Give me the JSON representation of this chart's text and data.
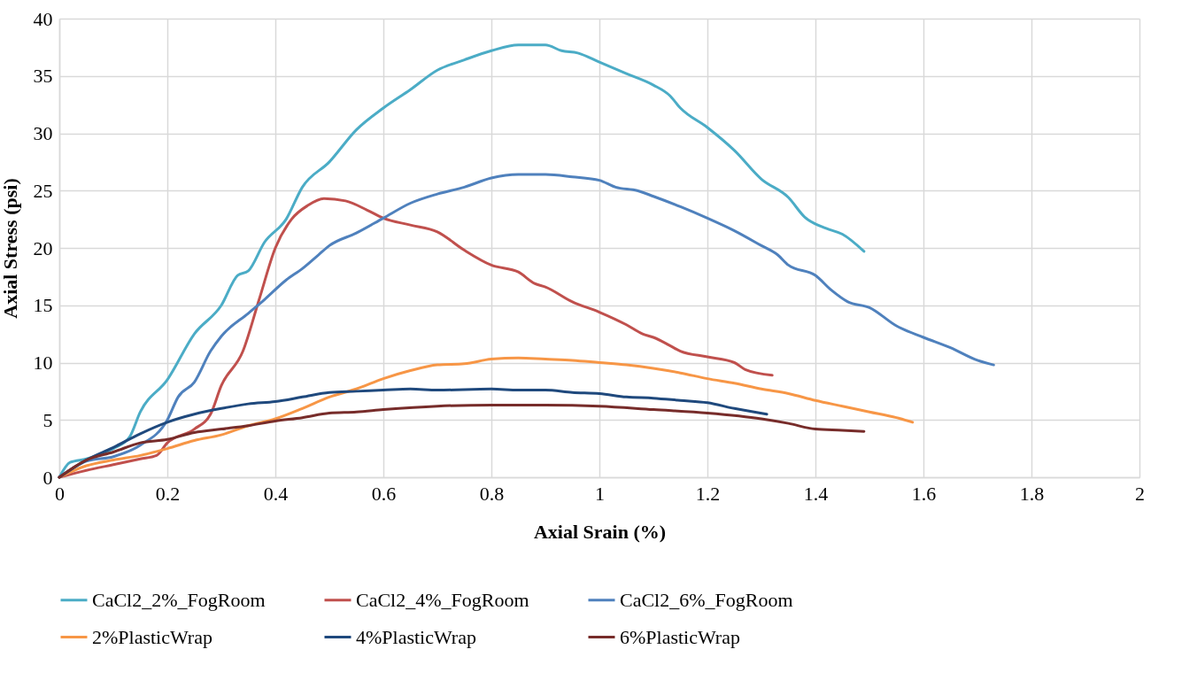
{
  "chart_data": {
    "type": "line",
    "xlabel": "Axial Srain (%)",
    "ylabel": "Axial Stress (psi)",
    "xlim": [
      0,
      2
    ],
    "ylim": [
      0,
      40
    ],
    "xticks": [
      0,
      0.2,
      0.4,
      0.6,
      0.8,
      1,
      1.2,
      1.4,
      1.6,
      1.8,
      2
    ],
    "yticks": [
      0,
      5,
      10,
      15,
      20,
      25,
      30,
      35,
      40
    ],
    "grid": true,
    "legend": "bottom",
    "marker": "none",
    "line_style": "solid",
    "series": [
      {
        "name": "CaCl2_2%_FogRoom",
        "color": "#4bacc6",
        "x": [
          0,
          0.02,
          0.05,
          0.1,
          0.13,
          0.15,
          0.2,
          0.25,
          0.3,
          0.33,
          0.35,
          0.38,
          0.42,
          0.45,
          0.5,
          0.55,
          0.6,
          0.65,
          0.7,
          0.75,
          0.8,
          0.85,
          0.9,
          0.93,
          0.96,
          1,
          1.05,
          1.1,
          1.13,
          1.15,
          1.2,
          1.25,
          1.3,
          1.35,
          1.38,
          1.42,
          1.45,
          1.49
        ],
        "values": [
          0,
          1.3,
          1.6,
          2.5,
          3.5,
          5.7,
          8.5,
          12.5,
          15,
          17.6,
          18,
          20.5,
          22.5,
          25.3,
          27.5,
          30.3,
          32.2,
          33.8,
          35.5,
          36.4,
          37.2,
          37.7,
          37.7,
          37.2,
          37,
          36.2,
          35.2,
          34.2,
          33.3,
          32.2,
          30.5,
          28.5,
          26,
          24.4,
          22.7,
          21.7,
          21.2,
          19.7
        ]
      },
      {
        "name": "CaCl2_4%_FogRoom",
        "color": "#c0504d",
        "x": [
          0,
          0.05,
          0.1,
          0.15,
          0.18,
          0.2,
          0.25,
          0.28,
          0.3,
          0.34,
          0.37,
          0.4,
          0.43,
          0.46,
          0.49,
          0.53,
          0.57,
          0.6,
          0.65,
          0.7,
          0.75,
          0.8,
          0.85,
          0.88,
          0.9,
          0.95,
          1,
          1.05,
          1.08,
          1.1,
          1.13,
          1.15,
          1.2,
          1.25,
          1.27,
          1.32
        ],
        "values": [
          0,
          0.6,
          1.1,
          1.6,
          1.9,
          3,
          4.2,
          5.5,
          8,
          11,
          15.5,
          20,
          22.5,
          23.7,
          24.3,
          24.1,
          23.3,
          22.6,
          22,
          21.4,
          19.8,
          18.5,
          17.9,
          16.9,
          16.6,
          15.3,
          14.4,
          13.3,
          12.5,
          12.2,
          11.5,
          11,
          10.5,
          10,
          9.4,
          8.9
        ]
      },
      {
        "name": "CaCl2_6%_FogRoom",
        "color": "#4f81bd",
        "x": [
          0,
          0.05,
          0.1,
          0.15,
          0.2,
          0.22,
          0.25,
          0.28,
          0.3,
          0.35,
          0.38,
          0.42,
          0.45,
          0.48,
          0.5,
          0.55,
          0.6,
          0.65,
          0.7,
          0.75,
          0.8,
          0.85,
          0.9,
          0.95,
          1,
          1.03,
          1.07,
          1.1,
          1.15,
          1.2,
          1.25,
          1.3,
          1.33,
          1.35,
          1.4,
          1.43,
          1.46,
          1.5,
          1.55,
          1.6,
          1.65,
          1.7,
          1.73
        ],
        "values": [
          0,
          1.4,
          1.8,
          2.8,
          5,
          7,
          8.3,
          11,
          12.3,
          14.3,
          15.5,
          17.2,
          18.2,
          19.4,
          20.2,
          21.3,
          22.6,
          23.9,
          24.7,
          25.3,
          26.1,
          26.4,
          26.4,
          26.2,
          25.9,
          25.3,
          25,
          24.5,
          23.6,
          22.6,
          21.5,
          20.2,
          19.4,
          18.5,
          17.6,
          16.3,
          15.3,
          14.8,
          13.2,
          12.2,
          11.3,
          10.2,
          9.8
        ]
      },
      {
        "name": "2%PlasticWrap",
        "color": "#f79646",
        "x": [
          0,
          0.05,
          0.1,
          0.15,
          0.2,
          0.25,
          0.3,
          0.35,
          0.4,
          0.45,
          0.5,
          0.55,
          0.6,
          0.65,
          0.7,
          0.75,
          0.8,
          0.85,
          0.9,
          0.95,
          1,
          1.05,
          1.1,
          1.15,
          1.2,
          1.25,
          1.3,
          1.35,
          1.4,
          1.45,
          1.5,
          1.55,
          1.58
        ],
        "values": [
          0,
          1,
          1.5,
          1.9,
          2.5,
          3.2,
          3.7,
          4.5,
          5.1,
          6,
          7,
          7.7,
          8.6,
          9.3,
          9.8,
          9.9,
          10.3,
          10.4,
          10.3,
          10.2,
          10,
          9.8,
          9.5,
          9.1,
          8.6,
          8.2,
          7.7,
          7.3,
          6.7,
          6.2,
          5.7,
          5.2,
          4.8
        ]
      },
      {
        "name": "4%PlasticWrap",
        "color": "#1f497d",
        "x": [
          0,
          0.05,
          0.1,
          0.15,
          0.2,
          0.25,
          0.3,
          0.35,
          0.4,
          0.45,
          0.5,
          0.55,
          0.6,
          0.65,
          0.7,
          0.8,
          0.85,
          0.9,
          0.95,
          1,
          1.05,
          1.1,
          1.15,
          1.2,
          1.25,
          1.31
        ],
        "values": [
          0,
          1.5,
          2.6,
          3.8,
          4.8,
          5.5,
          6,
          6.4,
          6.6,
          7,
          7.4,
          7.5,
          7.6,
          7.7,
          7.6,
          7.7,
          7.6,
          7.6,
          7.4,
          7.3,
          7,
          6.9,
          6.7,
          6.5,
          6,
          5.5
        ]
      },
      {
        "name": "6%PlasticWrap",
        "color": "#772c2a",
        "x": [
          0,
          0.05,
          0.1,
          0.15,
          0.2,
          0.25,
          0.3,
          0.35,
          0.4,
          0.45,
          0.5,
          0.55,
          0.6,
          0.7,
          0.8,
          0.9,
          1,
          1.1,
          1.2,
          1.3,
          1.35,
          1.4,
          1.45,
          1.49
        ],
        "values": [
          0,
          1.5,
          2.2,
          3,
          3.3,
          3.9,
          4.2,
          4.5,
          4.9,
          5.2,
          5.6,
          5.7,
          5.9,
          6.2,
          6.3,
          6.3,
          6.2,
          5.9,
          5.6,
          5.1,
          4.7,
          4.2,
          4.1,
          4
        ]
      }
    ]
  }
}
